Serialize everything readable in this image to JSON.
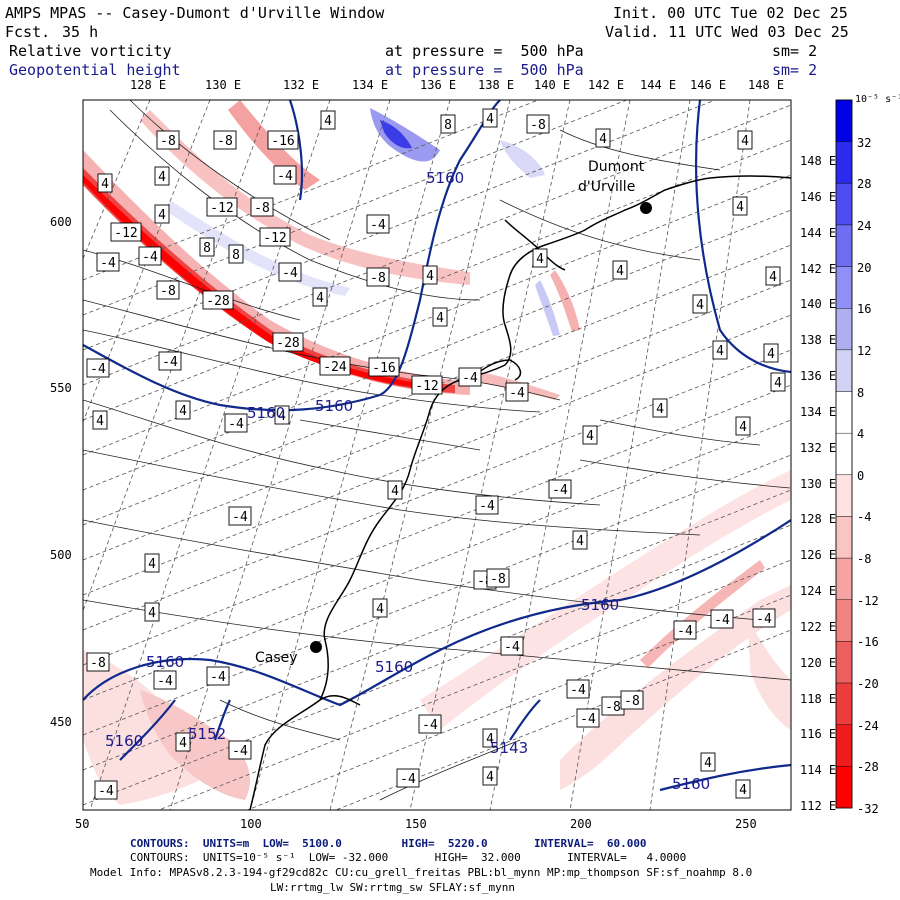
{
  "header": {
    "title": "AMPS MPAS -- Casey-Dumont d'Urville Window",
    "forecast_label": "Fcst.",
    "forecast_value": "35 h",
    "init": "Init. 00 UTC Tue 02 Dec 25",
    "valid": "Valid. 11 UTC Wed 03 Dec 25",
    "field1_name": "Relative vorticity",
    "field1_level": "at pressure =  500 hPa",
    "field1_smooth": "sm= 2",
    "field2_name": "Geopotential height",
    "field2_level": "at pressure =  500 hPa",
    "field2_smooth": "sm= 2"
  },
  "longitudes": [
    "128 E",
    "130 E",
    "132 E",
    "134 E",
    "136 E",
    "138 E",
    "140 E",
    "142 E",
    "144 E",
    "146 E",
    "148 E"
  ],
  "right_lon_labels": [
    "148 E",
    "146 E",
    "144 E",
    "142 E",
    "140 E",
    "138 E",
    "136 E",
    "134 E",
    "132 E",
    "130 E",
    "128 E",
    "126 E",
    "124 E",
    "122 E",
    "120 E",
    "118 E",
    "116 E",
    "114 E",
    "112 E"
  ],
  "x_ticks": [
    "50",
    "100",
    "150",
    "200",
    "250"
  ],
  "y_ticks": [
    "600",
    "550",
    "500",
    "450"
  ],
  "colorbar": {
    "unit_label": "10⁻⁵ s⁻¹",
    "labels": [
      "32",
      "28",
      "24",
      "20",
      "16",
      "12",
      "8",
      "4",
      "0",
      "-4",
      "-8",
      "-12",
      "-16",
      "-20",
      "-24",
      "-28",
      "-32"
    ],
    "colors": [
      "#0000e6",
      "#2b2bf0",
      "#4d4df2",
      "#6e6ef2",
      "#8f8ff5",
      "#afafef",
      "#d2d2f5",
      "#ffffff",
      "#ffffff",
      "#ffe2e2",
      "#f9c4c4",
      "#f5a3a3",
      "#f08282",
      "#ee5f5f",
      "#ee3d3d",
      "#f01c1c",
      "#ff0000"
    ]
  },
  "places": {
    "casey": "Casey",
    "dumont1": "Dumont",
    "dumont2": "d'Urville"
  },
  "height_labels": [
    "5160",
    "5160",
    "5160",
    "5160",
    "5160",
    "5160",
    "5152",
    "5143",
    "5160",
    "5160"
  ],
  "vort_labels": [
    "-8",
    "-8",
    "-16",
    "-4",
    "4",
    "4",
    "4",
    "8",
    "4",
    "-8",
    "4",
    "-12",
    "-8",
    "4",
    "-12",
    "-12",
    "-4",
    "8",
    "8",
    "-4",
    "-4",
    "-28",
    "-8",
    "4",
    "4",
    "-8",
    "-28",
    "-24",
    "-16",
    "-12",
    "-4",
    "-4",
    "-4",
    "4",
    "-4",
    "4",
    "4",
    "-4",
    "4",
    "4",
    "4",
    "4",
    "4",
    "4",
    "-4",
    "4",
    "4",
    "4",
    "4",
    "-4",
    "-4",
    "-4",
    "-8",
    "-8",
    "-8",
    "-4",
    "-4",
    "-4",
    "-4",
    "-4",
    "-4",
    "-8",
    "-4",
    "-4",
    "-4",
    "4",
    "-4",
    "-8",
    "-4",
    "-4",
    "4",
    "4",
    "4",
    "4",
    "4",
    "4",
    "4",
    "4",
    "4",
    "4",
    "4",
    "4"
  ],
  "footer": {
    "line1": "CONTOURS:  UNITS=m  LOW=  5100.0         HIGH=  5220.0       INTERVAL=  60.000",
    "line2": "CONTOURS:  UNITS=10⁻⁵ s⁻¹  LOW= -32.000       HIGH=  32.000       INTERVAL=   4.0000",
    "line3": "Model Info: MPASv8.2.3-194-gf29cd82c CU:cu_grell_freitas PBL:bl_mynn MP:mp_thompson SF:sf_noahmp 8.0",
    "line4": "LW:rrtmg_lw SW:rrtmg_sw SFLAY:sf_mynn"
  }
}
